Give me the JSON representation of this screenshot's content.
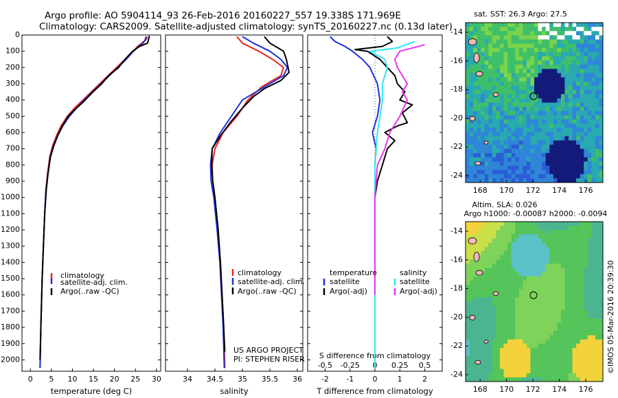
{
  "header": {
    "line1": "Argo profile: AO 5904114_93 26-Feb-2016 20160227_557 19.338S 171.969E",
    "line2": "Climatology: CARS2009. Satellite-adjusted climatology: synTS_20160227.nc (0.13d later)"
  },
  "colors": {
    "climatology": "#e8231f",
    "satellite": "#1b2fd6",
    "argo": "#000000",
    "salinity_sat": "#33e6ee",
    "salinity_argo": "#ec33ec"
  },
  "chart_data": [
    {
      "type": "line",
      "id": "temperature",
      "xlabel": "temperature (deg C)",
      "ylabel": "",
      "xlim": [
        -2,
        31
      ],
      "ylim": [
        2070,
        0
      ],
      "xticks": [
        0,
        5,
        10,
        15,
        20,
        25,
        30
      ],
      "yticks": [
        0,
        100,
        200,
        300,
        400,
        500,
        600,
        700,
        800,
        900,
        1000,
        1100,
        1200,
        1300,
        1400,
        1500,
        1600,
        1700,
        1800,
        1900,
        2000
      ],
      "legend": {
        "position": "lower-middle",
        "entries": [
          "climatology",
          "satellite-adj. clim.",
          "Argo(..raw -QC)"
        ]
      },
      "series": [
        {
          "name": "climatology",
          "key": "climatology",
          "points": [
            [
              27.8,
              10
            ],
            [
              27.5,
              30
            ],
            [
              26.5,
              50
            ],
            [
              25.5,
              70
            ],
            [
              24.5,
              100
            ],
            [
              22.5,
              150
            ],
            [
              20.5,
              200
            ],
            [
              18.5,
              250
            ],
            [
              16.5,
              300
            ],
            [
              14.5,
              350
            ],
            [
              12.5,
              400
            ],
            [
              10.5,
              450
            ],
            [
              8.8,
              500
            ],
            [
              7.3,
              560
            ],
            [
              6.2,
              620
            ],
            [
              5.3,
              680
            ],
            [
              4.6,
              750
            ],
            [
              4.1,
              850
            ],
            [
              3.7,
              950
            ],
            [
              3.4,
              1100
            ],
            [
              3.1,
              1300
            ],
            [
              2.8,
              1500
            ],
            [
              2.5,
              1800
            ],
            [
              2.3,
              2050
            ]
          ]
        },
        {
          "name": "satellite-adj. clim.",
          "key": "satellite",
          "points": [
            [
              27.5,
              10
            ],
            [
              27.3,
              30
            ],
            [
              26.8,
              50
            ],
            [
              25.8,
              70
            ],
            [
              24.5,
              100
            ],
            [
              22.8,
              150
            ],
            [
              20.8,
              200
            ],
            [
              18.8,
              250
            ],
            [
              16.8,
              300
            ],
            [
              14.8,
              350
            ],
            [
              12.8,
              400
            ],
            [
              11.0,
              450
            ],
            [
              9.3,
              500
            ],
            [
              7.7,
              560
            ],
            [
              6.5,
              620
            ],
            [
              5.5,
              680
            ],
            [
              4.7,
              750
            ],
            [
              4.2,
              850
            ],
            [
              3.7,
              950
            ],
            [
              3.4,
              1100
            ],
            [
              3.1,
              1300
            ],
            [
              2.8,
              1500
            ],
            [
              2.5,
              1800
            ],
            [
              2.3,
              2050
            ]
          ]
        },
        {
          "name": "Argo(..raw -QC)",
          "key": "argo",
          "points": [
            [
              28.3,
              5
            ],
            [
              28.1,
              30
            ],
            [
              27.9,
              50
            ],
            [
              26.0,
              70
            ],
            [
              24.3,
              100
            ],
            [
              22.5,
              150
            ],
            [
              21.0,
              200
            ],
            [
              18.6,
              250
            ],
            [
              17.0,
              300
            ],
            [
              14.9,
              350
            ],
            [
              12.3,
              420
            ],
            [
              10.5,
              460
            ],
            [
              9.0,
              500
            ],
            [
              7.6,
              560
            ],
            [
              6.5,
              620
            ],
            [
              5.6,
              680
            ],
            [
              4.8,
              750
            ],
            [
              4.2,
              850
            ],
            [
              3.8,
              950
            ],
            [
              3.4,
              1100
            ],
            [
              3.1,
              1300
            ],
            [
              2.8,
              1500
            ],
            [
              2.5,
              1800
            ],
            [
              2.3,
              2000
            ]
          ]
        }
      ]
    },
    {
      "type": "line",
      "id": "salinity",
      "xlabel": "salinity",
      "ylabel": "",
      "xlim": [
        33.6,
        36.1
      ],
      "ylim": [
        2070,
        0
      ],
      "xticks": [
        34,
        34.5,
        35,
        35.5,
        36
      ],
      "legend": {
        "position": "lower-middle",
        "entries": [
          "climatology",
          "satellite-adj. clim.",
          "Argo(..raw -QC)"
        ]
      },
      "series": [
        {
          "name": "climatology",
          "key": "climatology",
          "points": [
            [
              34.9,
              10
            ],
            [
              35.0,
              50
            ],
            [
              35.3,
              100
            ],
            [
              35.55,
              150
            ],
            [
              35.75,
              200
            ],
            [
              35.7,
              250
            ],
            [
              35.35,
              320
            ],
            [
              35.1,
              400
            ],
            [
              34.9,
              500
            ],
            [
              34.65,
              600
            ],
            [
              34.5,
              700
            ],
            [
              34.45,
              800
            ],
            [
              34.46,
              900
            ],
            [
              34.5,
              1000
            ],
            [
              34.55,
              1200
            ],
            [
              34.6,
              1400
            ],
            [
              34.63,
              1600
            ],
            [
              34.66,
              1800
            ],
            [
              34.68,
              2050
            ]
          ]
        },
        {
          "name": "satellite-adj. clim.",
          "key": "satellite",
          "points": [
            [
              35.0,
              10
            ],
            [
              35.2,
              50
            ],
            [
              35.5,
              100
            ],
            [
              35.7,
              150
            ],
            [
              35.82,
              200
            ],
            [
              35.75,
              250
            ],
            [
              35.4,
              320
            ],
            [
              35.0,
              400
            ],
            [
              34.8,
              500
            ],
            [
              34.6,
              600
            ],
            [
              34.45,
              700
            ],
            [
              34.42,
              800
            ],
            [
              34.43,
              900
            ],
            [
              34.48,
              1000
            ],
            [
              34.54,
              1200
            ],
            [
              34.59,
              1400
            ],
            [
              34.62,
              1600
            ],
            [
              34.65,
              1800
            ],
            [
              34.67,
              2050
            ]
          ]
        },
        {
          "name": "Argo(..raw -QC)",
          "key": "argo",
          "points": [
            [
              35.4,
              10
            ],
            [
              35.5,
              50
            ],
            [
              35.65,
              80
            ],
            [
              35.75,
              100
            ],
            [
              35.8,
              150
            ],
            [
              35.85,
              230
            ],
            [
              35.7,
              280
            ],
            [
              35.4,
              330
            ],
            [
              35.2,
              380
            ],
            [
              35.0,
              450
            ],
            [
              34.8,
              530
            ],
            [
              34.6,
              620
            ],
            [
              34.45,
              700
            ],
            [
              34.44,
              800
            ],
            [
              34.46,
              900
            ],
            [
              34.5,
              1000
            ],
            [
              34.56,
              1200
            ],
            [
              34.6,
              1400
            ],
            [
              34.63,
              1600
            ],
            [
              34.66,
              1800
            ],
            [
              34.68,
              1950
            ]
          ]
        }
      ]
    },
    {
      "type": "line",
      "id": "differences",
      "xlabel": "T difference from climatology",
      "xlabel_top": "S difference from climatology",
      "xlim": [
        -2.7,
        2.7
      ],
      "ylim": [
        2070,
        0
      ],
      "xticks_bottom": [
        -2,
        -1,
        0,
        1,
        2
      ],
      "xticks_top": [
        {
          "label": "-0.5",
          "t": -2
        },
        {
          "label": "-0.25",
          "t": -1
        },
        {
          "label": "0",
          "t": 0
        },
        {
          "label": "0.25",
          "t": 1
        },
        {
          "label": "0.5",
          "t": 2
        }
      ],
      "legend": {
        "temperature_title": "temperature",
        "salinity_title": "salinity",
        "entries": [
          "satellite",
          "Argo(-adj)",
          "satellite",
          "Argo(-adj)"
        ]
      },
      "series": [
        {
          "name": "satellite",
          "key": "satellite",
          "points": [
            [
              -1.8,
              10
            ],
            [
              -1.6,
              40
            ],
            [
              -1.2,
              70
            ],
            [
              -0.9,
              100
            ],
            [
              -0.5,
              150
            ],
            [
              -0.2,
              200
            ],
            [
              0.1,
              300
            ],
            [
              0.2,
              400
            ],
            [
              0.1,
              500
            ],
            [
              -0.1,
              600
            ],
            [
              0.05,
              700
            ],
            [
              0,
              800
            ],
            [
              0,
              1000
            ],
            [
              0,
              1500
            ],
            [
              0,
              2050
            ]
          ]
        },
        {
          "name": "Argo(-adj)",
          "key": "argo",
          "points": [
            [
              0.5,
              10
            ],
            [
              0.7,
              40
            ],
            [
              0.3,
              70
            ],
            [
              -0.8,
              90
            ],
            [
              -0.3,
              100
            ],
            [
              0.2,
              150
            ],
            [
              0.5,
              200
            ],
            [
              0.8,
              250
            ],
            [
              0.9,
              300
            ],
            [
              1.2,
              350
            ],
            [
              1.0,
              400
            ],
            [
              1.5,
              430
            ],
            [
              1.1,
              480
            ],
            [
              1.3,
              540
            ],
            [
              0.9,
              560
            ],
            [
              0.4,
              600
            ],
            [
              0.8,
              650
            ],
            [
              0.5,
              700
            ],
            [
              0.3,
              800
            ],
            [
              0.1,
              900
            ],
            [
              0,
              1000
            ],
            [
              0,
              1300
            ],
            [
              0,
              1500
            ]
          ]
        },
        {
          "name": "satellite",
          "key": "salinity_sat",
          "points": [
            [
              1.6,
              40
            ],
            [
              0.9,
              80
            ],
            [
              -0.2,
              100
            ],
            [
              0.4,
              150
            ],
            [
              0.5,
              200
            ],
            [
              0.3,
              300
            ],
            [
              0.3,
              400
            ],
            [
              0.2,
              500
            ],
            [
              0.1,
              600
            ],
            [
              0,
              800
            ],
            [
              0,
              1000
            ],
            [
              0,
              2050
            ]
          ]
        },
        {
          "name": "Argo(-adj)",
          "key": "salinity_argo",
          "points": [
            [
              2.0,
              60
            ],
            [
              1.0,
              100
            ],
            [
              0.8,
              150
            ],
            [
              0.9,
              200
            ],
            [
              1.3,
              300
            ],
            [
              1.1,
              350
            ],
            [
              1.3,
              400
            ],
            [
              1.0,
              500
            ],
            [
              0.6,
              600
            ],
            [
              0.4,
              700
            ],
            [
              0.1,
              800
            ],
            [
              0,
              1000
            ],
            [
              0,
              1600
            ]
          ]
        }
      ]
    }
  ],
  "footer": {
    "project": "US ARGO PROJECT",
    "pi": "PI: STEPHEN RISER"
  },
  "maps": {
    "sst": {
      "title": "sat. SST: 26.3 Argo: 27.5",
      "xticks": [
        "168",
        "170",
        "172",
        "174",
        "176"
      ],
      "yticks": [
        "-14",
        "-16",
        "-18",
        "-20",
        "-22",
        "-24"
      ]
    },
    "sla": {
      "title1": "Altim. SLA: 0.026",
      "title2": "Argo h1000: -0.00087 h2000: -0.0094",
      "xticks": [
        "168",
        "170",
        "172",
        "174",
        "176"
      ],
      "yticks": [
        "-14",
        "-16",
        "-18",
        "-20",
        "-22",
        "-24"
      ]
    },
    "credit": "©IMOS 05-Mar-2016 20:39:30"
  }
}
